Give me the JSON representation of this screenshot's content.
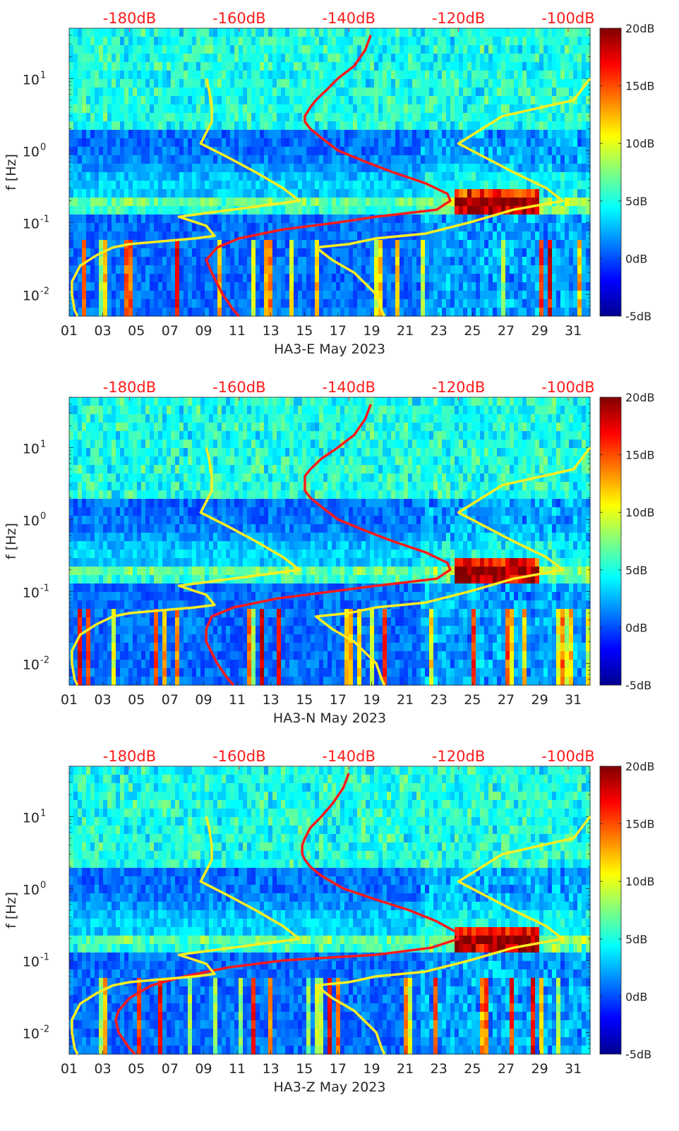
{
  "chart_data": [
    {
      "type": "heatmap",
      "xlabel": "HA3-E May 2023",
      "ylabel": "f [Hz]",
      "x_tick_labels": [
        "01",
        "03",
        "05",
        "07",
        "09",
        "11",
        "13",
        "15",
        "17",
        "19",
        "21",
        "23",
        "25",
        "27",
        "29",
        "31"
      ],
      "x_ticks_day": [
        1,
        3,
        5,
        7,
        9,
        11,
        13,
        15,
        17,
        19,
        21,
        23,
        25,
        27,
        29,
        31
      ],
      "xlim_day": [
        1,
        32
      ],
      "y_scale": "log",
      "ylim_hz": [
        0.005,
        50
      ],
      "y_tick_labels": [
        "10^-2",
        "10^-1",
        "10^0",
        "10^1"
      ],
      "y_ticks_hz": [
        0.01,
        0.1,
        1,
        10
      ],
      "top_axis_labels": [
        "-180dB",
        "-160dB",
        "-140dB",
        "-120dB",
        "-100dB"
      ],
      "top_axis_values_db": [
        -180,
        -160,
        -140,
        -120,
        -100
      ],
      "top_axis_range_db": [
        -191,
        -96
      ],
      "colorbar": {
        "labels": [
          "20dB",
          "15dB",
          "10dB",
          "5dB",
          "0dB",
          "-5dB"
        ],
        "values_db": [
          20,
          15,
          10,
          5,
          0,
          -5
        ],
        "range_db": [
          -5,
          20
        ],
        "colormap": "jet"
      },
      "series": [
        {
          "color": "#ff1a1a",
          "freq_hz": [
            40,
            25,
            15,
            10,
            7,
            5,
            4,
            3,
            2.5,
            2,
            1.5,
            1,
            0.7,
            0.5,
            0.35,
            0.25,
            0.2,
            0.15,
            0.12,
            0.1,
            0.08,
            0.06,
            0.045,
            0.03,
            0.02,
            0.01,
            0.006,
            0.005
          ],
          "level_db": [
            -136,
            -137,
            -139,
            -142,
            -144,
            -146,
            -147,
            -148,
            -148,
            -147,
            -145,
            -142,
            -137,
            -132,
            -126,
            -122,
            -121.5,
            -124,
            -135,
            -142,
            -152,
            -160,
            -164,
            -166,
            -165,
            -163,
            -161,
            -160
          ]
        },
        {
          "color": "#ffee22",
          "freq_hz": [
            10,
            7,
            4,
            2.5,
            1.25,
            0.8,
            0.5,
            0.3,
            0.2,
            0.12,
            0.09,
            0.065,
            0.06,
            0.05,
            0.045,
            0.035,
            0.025,
            0.015,
            0.01,
            0.006,
            0.005
          ],
          "level_db": [
            -166,
            -165.5,
            -165,
            -165,
            -167,
            -162,
            -157,
            -152,
            -149,
            -171,
            -166,
            -164.5,
            -168,
            -180,
            -183,
            -186,
            -189,
            -190.5,
            -190.5,
            -190,
            -189.5
          ]
        },
        {
          "color": "#ffee22",
          "freq_hz": [
            10,
            5,
            3,
            1.25,
            0.5,
            0.3,
            0.2,
            0.15,
            0.1,
            0.07,
            0.06,
            0.05,
            0.045,
            0.03,
            0.02,
            0.01,
            0.006,
            0.005
          ],
          "level_db": [
            -96,
            -99,
            -112,
            -120,
            -110,
            -104,
            -101,
            -110,
            -118,
            -126,
            -135,
            -140,
            -146,
            -143,
            -139,
            -135,
            -134,
            -133.5
          ]
        }
      ]
    },
    {
      "type": "heatmap",
      "xlabel": "HA3-N May 2023",
      "ylabel": "f [Hz]",
      "x_tick_labels": [
        "01",
        "03",
        "05",
        "07",
        "09",
        "11",
        "13",
        "15",
        "17",
        "19",
        "21",
        "23",
        "25",
        "27",
        "29",
        "31"
      ],
      "x_ticks_day": [
        1,
        3,
        5,
        7,
        9,
        11,
        13,
        15,
        17,
        19,
        21,
        23,
        25,
        27,
        29,
        31
      ],
      "xlim_day": [
        1,
        32
      ],
      "y_scale": "log",
      "ylim_hz": [
        0.005,
        50
      ],
      "y_tick_labels": [
        "10^-2",
        "10^-1",
        "10^0",
        "10^1"
      ],
      "y_ticks_hz": [
        0.01,
        0.1,
        1,
        10
      ],
      "top_axis_labels": [
        "-180dB",
        "-160dB",
        "-140dB",
        "-120dB",
        "-100dB"
      ],
      "top_axis_values_db": [
        -180,
        -160,
        -140,
        -120,
        -100
      ],
      "top_axis_range_db": [
        -191,
        -96
      ],
      "colorbar": {
        "labels": [
          "20dB",
          "15dB",
          "10dB",
          "5dB",
          "0dB",
          "-5dB"
        ],
        "values_db": [
          20,
          15,
          10,
          5,
          0,
          -5
        ],
        "range_db": [
          -5,
          20
        ],
        "colormap": "jet"
      },
      "series": [
        {
          "color": "#ff1a1a",
          "freq_hz": [
            40,
            25,
            15,
            10,
            7,
            5,
            4,
            3,
            2.5,
            2,
            1.5,
            1,
            0.7,
            0.5,
            0.35,
            0.25,
            0.2,
            0.15,
            0.12,
            0.1,
            0.08,
            0.06,
            0.045,
            0.03,
            0.02,
            0.01,
            0.006,
            0.005
          ],
          "level_db": [
            -136,
            -137,
            -139,
            -142,
            -145,
            -147,
            -148,
            -148,
            -148,
            -147,
            -145,
            -142,
            -137,
            -132,
            -126,
            -122,
            -121.5,
            -124,
            -135,
            -143,
            -153,
            -161,
            -165,
            -166,
            -166,
            -164,
            -162,
            -161
          ]
        },
        {
          "color": "#ffee22",
          "freq_hz": [
            10,
            7,
            4,
            2.5,
            1.25,
            0.8,
            0.5,
            0.3,
            0.2,
            0.12,
            0.09,
            0.065,
            0.06,
            0.05,
            0.045,
            0.035,
            0.025,
            0.015,
            0.01,
            0.006,
            0.005
          ],
          "level_db": [
            -166,
            -165.5,
            -165,
            -165,
            -167,
            -162,
            -157,
            -152,
            -149,
            -171,
            -166,
            -164.5,
            -168,
            -180,
            -183,
            -186,
            -189,
            -190.5,
            -190.5,
            -190,
            -189.5
          ]
        },
        {
          "color": "#ffee22",
          "freq_hz": [
            10,
            5,
            3,
            1.25,
            0.5,
            0.3,
            0.2,
            0.15,
            0.1,
            0.07,
            0.06,
            0.05,
            0.045,
            0.03,
            0.02,
            0.01,
            0.006,
            0.005
          ],
          "level_db": [
            -96,
            -99,
            -112,
            -120,
            -110,
            -104,
            -101,
            -110,
            -118,
            -126,
            -135,
            -140,
            -146,
            -143,
            -139,
            -135,
            -134,
            -133.5
          ]
        }
      ]
    },
    {
      "type": "heatmap",
      "xlabel": "HA3-Z May 2023",
      "ylabel": "f [Hz]",
      "x_tick_labels": [
        "01",
        "03",
        "05",
        "07",
        "09",
        "11",
        "13",
        "15",
        "17",
        "19",
        "21",
        "23",
        "25",
        "27",
        "29",
        "31"
      ],
      "x_ticks_day": [
        1,
        3,
        5,
        7,
        9,
        11,
        13,
        15,
        17,
        19,
        21,
        23,
        25,
        27,
        29,
        31
      ],
      "xlim_day": [
        1,
        32
      ],
      "y_scale": "log",
      "ylim_hz": [
        0.005,
        50
      ],
      "y_tick_labels": [
        "10^-2",
        "10^-1",
        "10^0",
        "10^1"
      ],
      "y_ticks_hz": [
        0.01,
        0.1,
        1,
        10
      ],
      "top_axis_labels": [
        "-180dB",
        "-160dB",
        "-140dB",
        "-120dB",
        "-100dB"
      ],
      "top_axis_values_db": [
        -180,
        -160,
        -140,
        -120,
        -100
      ],
      "top_axis_range_db": [
        -191,
        -96
      ],
      "colorbar": {
        "labels": [
          "20dB",
          "15dB",
          "10dB",
          "5dB",
          "0dB",
          "-5dB"
        ],
        "values_db": [
          20,
          15,
          10,
          5,
          0,
          -5
        ],
        "range_db": [
          -5,
          20
        ],
        "colormap": "jet"
      },
      "series": [
        {
          "color": "#ff1a1a",
          "freq_hz": [
            40,
            25,
            15,
            10,
            7,
            5,
            4,
            3,
            2.5,
            2,
            1.5,
            1,
            0.7,
            0.5,
            0.35,
            0.25,
            0.2,
            0.15,
            0.12,
            0.1,
            0.08,
            0.06,
            0.045,
            0.03,
            0.02,
            0.015,
            0.01,
            0.006,
            0.005
          ],
          "level_db": [
            -140,
            -141,
            -143,
            -145,
            -147,
            -148,
            -148.5,
            -148.5,
            -148,
            -147,
            -145,
            -141,
            -135,
            -129,
            -124,
            -120.5,
            -120,
            -125,
            -135,
            -152,
            -162,
            -170,
            -176,
            -180,
            -182,
            -182.5,
            -182,
            -180,
            -179
          ]
        },
        {
          "color": "#ffee22",
          "freq_hz": [
            10,
            7,
            4,
            2.5,
            1.25,
            0.8,
            0.5,
            0.3,
            0.2,
            0.12,
            0.09,
            0.065,
            0.06,
            0.05,
            0.045,
            0.035,
            0.025,
            0.015,
            0.01,
            0.006,
            0.005
          ],
          "level_db": [
            -166,
            -165.5,
            -165,
            -165,
            -167,
            -162,
            -157,
            -152,
            -149,
            -171,
            -166,
            -164.5,
            -168,
            -180,
            -183,
            -186,
            -189,
            -190.5,
            -190.5,
            -190,
            -189.5
          ]
        },
        {
          "color": "#ffee22",
          "freq_hz": [
            10,
            5,
            3,
            1.25,
            0.5,
            0.3,
            0.2,
            0.15,
            0.1,
            0.07,
            0.06,
            0.05,
            0.045,
            0.03,
            0.02,
            0.01,
            0.006,
            0.005
          ],
          "level_db": [
            -96,
            -99,
            -112,
            -120,
            -110,
            -104,
            -101,
            -110,
            -118,
            -126,
            -135,
            -140,
            -146,
            -143,
            -139,
            -135,
            -134,
            -133.5
          ]
        }
      ]
    }
  ]
}
